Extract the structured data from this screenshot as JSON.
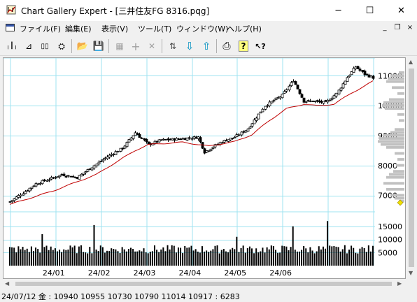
{
  "window": {
    "title": "Chart Gallery Expert - [三井住友FG 8316.pqg]",
    "min_glyph": "─",
    "max_glyph": "☐",
    "close_glyph": "✕"
  },
  "menu": [
    {
      "label": "ファイル(F)"
    },
    {
      "label": "編集(E)"
    },
    {
      "label": "表示(V)"
    },
    {
      "label": "ツール(T)"
    },
    {
      "label": "ウィンドウ(W)"
    },
    {
      "label": "ヘルプ(H)"
    }
  ],
  "mdi": {
    "min_glyph": "_",
    "restore_glyph": "❐",
    "close_glyph": "×"
  },
  "toolbar": {
    "icons": [
      {
        "name": "candle-chart-icon",
        "glyph": "╷┃╷",
        "disabled": false
      },
      {
        "name": "line-chart-icon",
        "glyph": "⊿",
        "disabled": false
      },
      {
        "name": "dual-chart-icon",
        "glyph": "▯▯",
        "disabled": false
      },
      {
        "name": "binoculars-icon",
        "glyph": "⛭",
        "disabled": false
      },
      {
        "name": "open-folder-icon",
        "glyph": "📂",
        "disabled": false
      },
      {
        "name": "save-disk-icon",
        "glyph": "💾",
        "disabled": false
      },
      {
        "name": "properties-icon",
        "glyph": "▦",
        "disabled": true
      },
      {
        "name": "add-icon",
        "glyph": "+",
        "disabled": true
      },
      {
        "name": "delete-icon",
        "glyph": "✕",
        "disabled": true
      },
      {
        "name": "scale-icon",
        "glyph": "⇅",
        "disabled": false
      },
      {
        "name": "arrow-down-icon",
        "glyph": "⇩",
        "disabled": false
      },
      {
        "name": "arrow-up-icon",
        "glyph": "⇧",
        "disabled": false
      },
      {
        "name": "printer-icon",
        "glyph": "⎙",
        "disabled": false
      },
      {
        "name": "help-icon",
        "glyph": "?",
        "disabled": false
      },
      {
        "name": "context-help-icon",
        "glyph": "↖?",
        "disabled": false
      }
    ]
  },
  "chart_data": {
    "type": "candlestick",
    "price_axis": {
      "min": 6500,
      "max": 11500,
      "ticks": [
        7000,
        8000,
        9000,
        10000,
        11000
      ]
    },
    "volume_axis": {
      "max": 20000,
      "ticks": [
        5000,
        10000,
        15000
      ]
    },
    "x_labels": [
      "24/01",
      "24/02",
      "24/03",
      "24/04",
      "24/05",
      "24/06"
    ],
    "grid": true,
    "colors": {
      "grid": "#9fe3f0",
      "candle": "#000000",
      "moving_average": "#c00000",
      "volume": "#000000",
      "profile": "#c0c0c0",
      "marker": "#f0e000"
    },
    "anchors_close": [
      [
        0,
        6790
      ],
      [
        12,
        7390
      ],
      [
        24,
        7700
      ],
      [
        31,
        7600
      ],
      [
        44,
        8250
      ],
      [
        52,
        8580
      ],
      [
        58,
        9100
      ],
      [
        64,
        8700
      ],
      [
        70,
        8850
      ],
      [
        80,
        8900
      ],
      [
        87,
        8950
      ],
      [
        90,
        8450
      ],
      [
        98,
        8800
      ],
      [
        104,
        8950
      ],
      [
        110,
        9230
      ],
      [
        118,
        10000
      ],
      [
        126,
        10350
      ],
      [
        131,
        10850
      ],
      [
        136,
        10150
      ],
      [
        140,
        10150
      ],
      [
        146,
        10100
      ],
      [
        151,
        10400
      ],
      [
        156,
        10950
      ],
      [
        160,
        11300
      ],
      [
        164,
        11050
      ],
      [
        168,
        10940
      ]
    ],
    "ma_anchors": [
      [
        0,
        6700
      ],
      [
        20,
        7150
      ],
      [
        40,
        7700
      ],
      [
        50,
        8150
      ],
      [
        58,
        8500
      ],
      [
        64,
        8700
      ],
      [
        80,
        8780
      ],
      [
        92,
        8650
      ],
      [
        104,
        8800
      ],
      [
        112,
        9030
      ],
      [
        120,
        9500
      ],
      [
        128,
        9900
      ],
      [
        136,
        10050
      ],
      [
        142,
        10000
      ],
      [
        150,
        10050
      ],
      [
        158,
        10420
      ],
      [
        164,
        10650
      ],
      [
        168,
        10820
      ]
    ],
    "volume_base": 5600,
    "volume_spikes": [
      [
        15,
        12000
      ],
      [
        39,
        15500
      ],
      [
        105,
        11000
      ],
      [
        131,
        15000
      ],
      [
        147,
        17000
      ]
    ]
  },
  "status": {
    "text": "24/07/12 金 : 10940 10955 10730 10790  11014 10917 : 6283"
  }
}
